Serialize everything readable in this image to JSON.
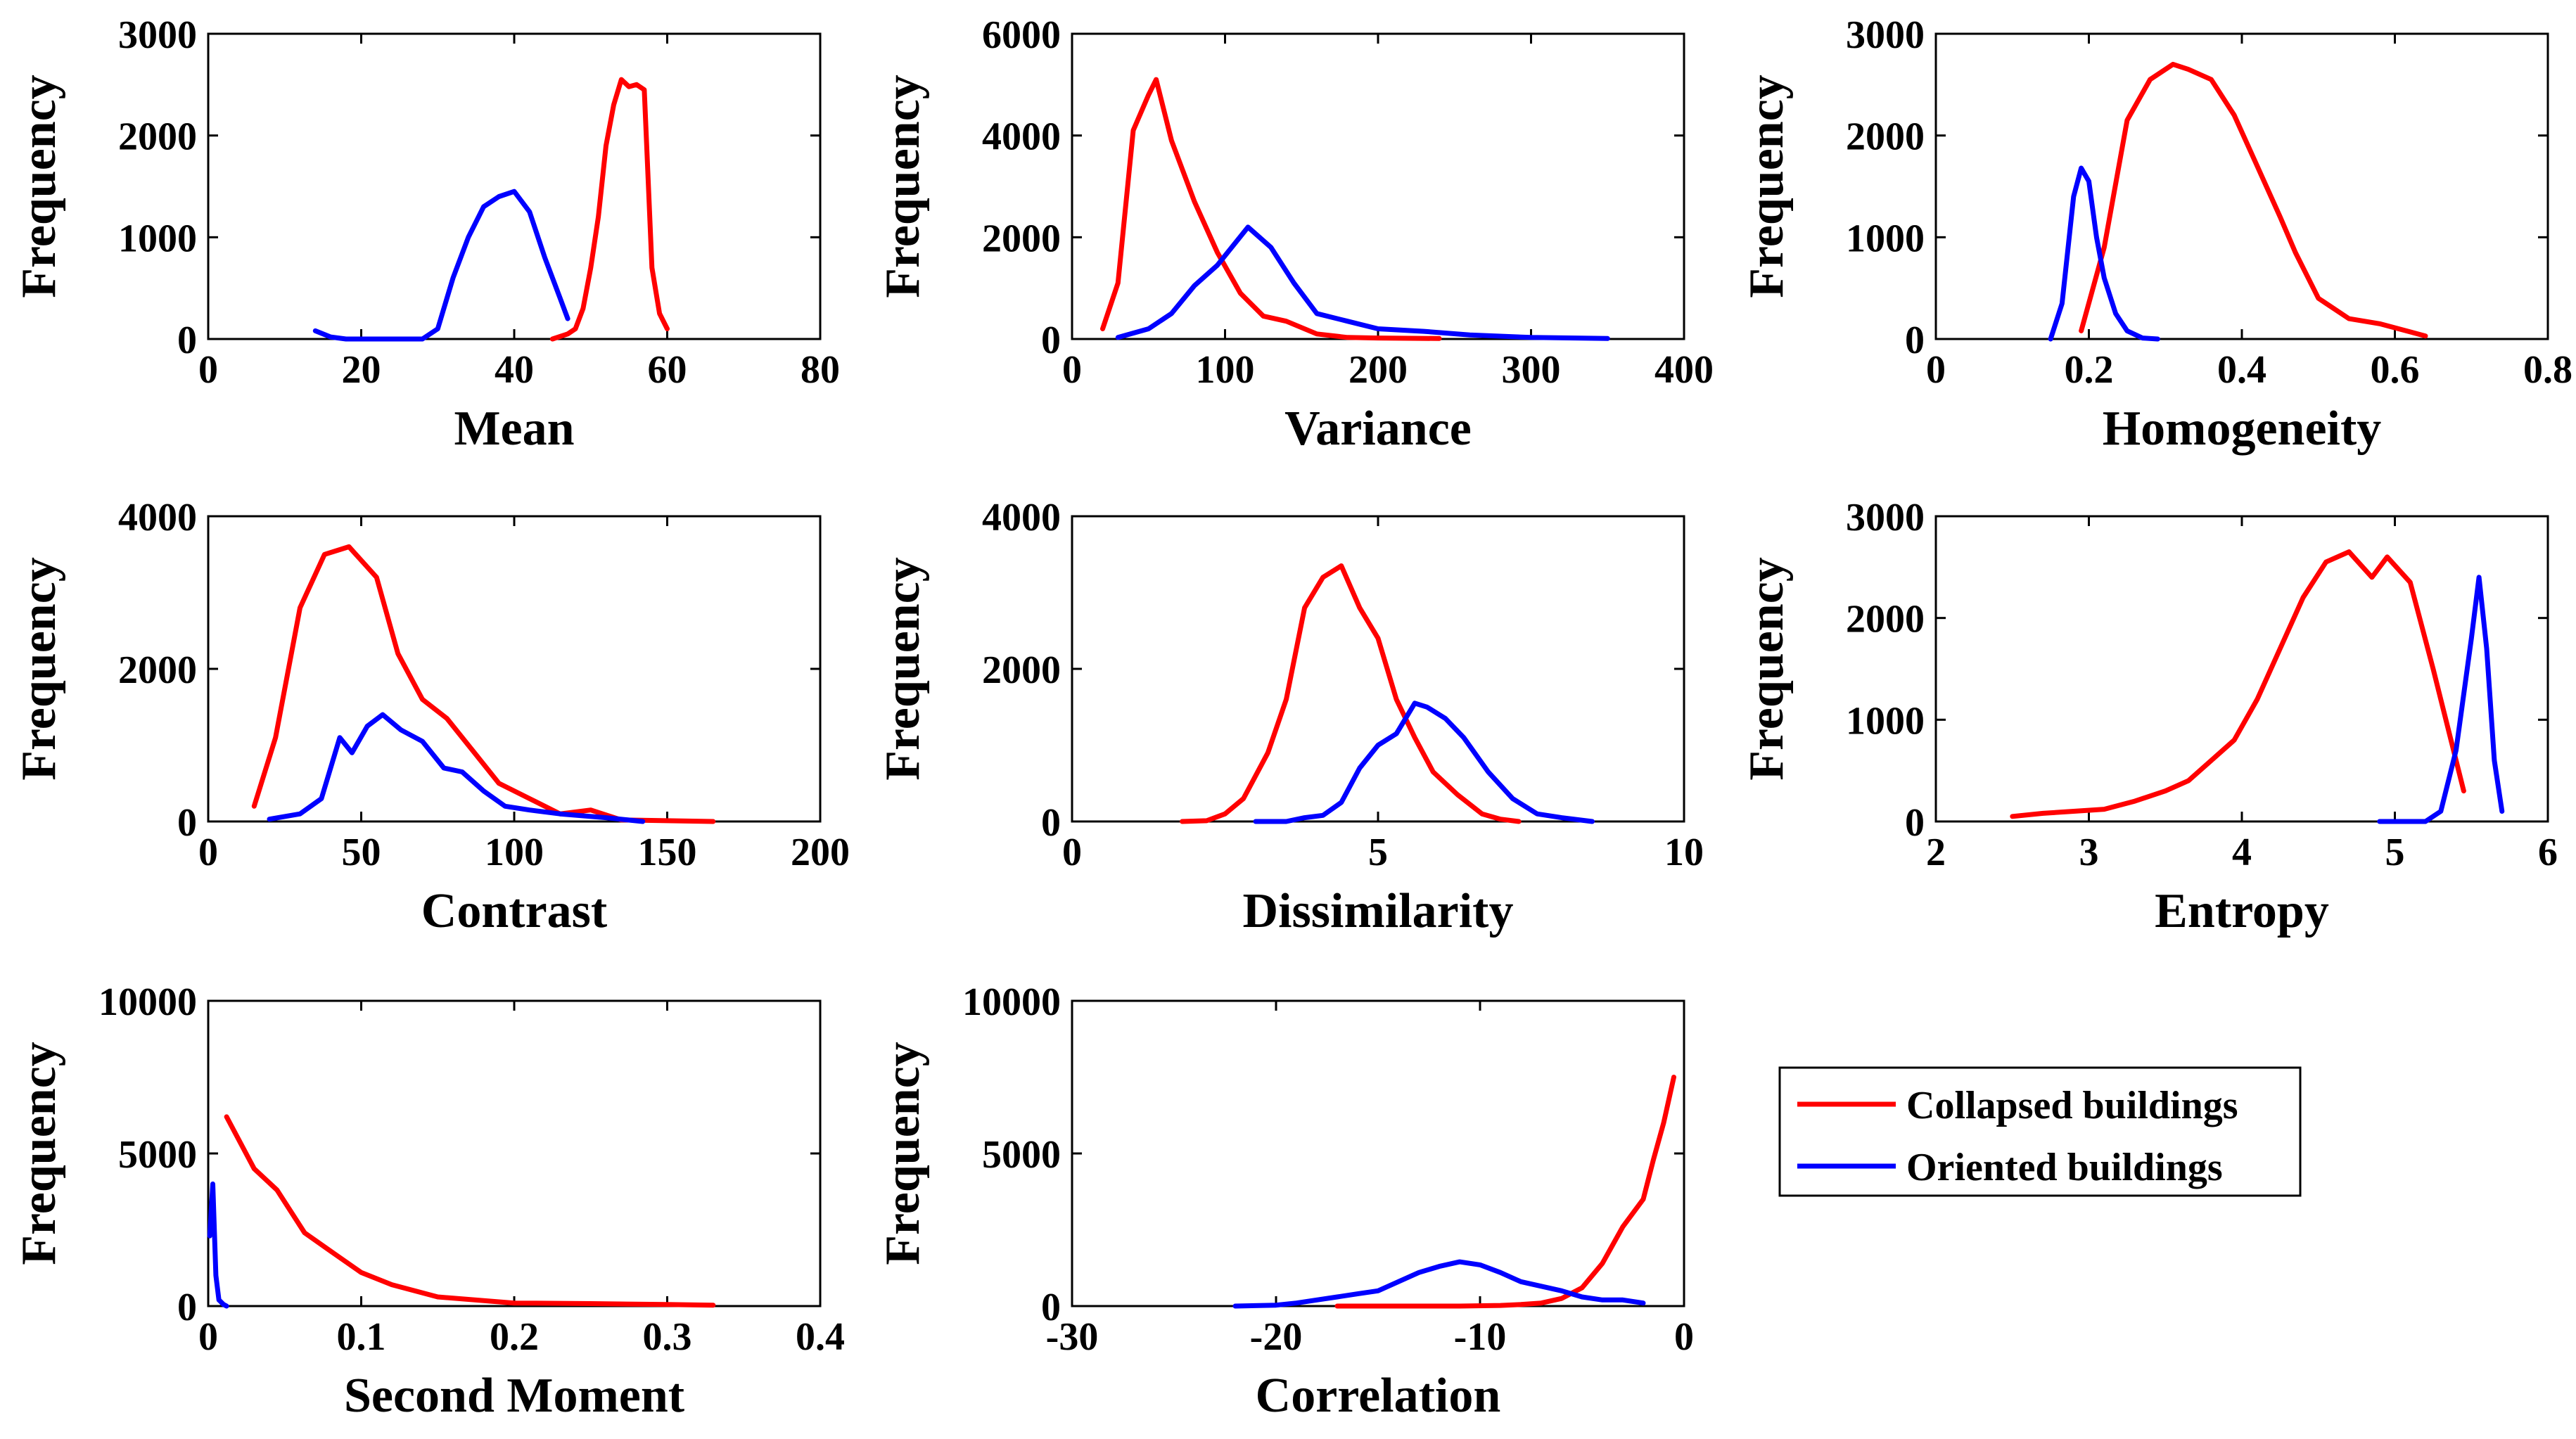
{
  "colors": {
    "collapsed": "#ff0000",
    "oriented": "#0000ff",
    "axis": "#000000"
  },
  "legend": {
    "placement": "bottom-right",
    "entries": [
      {
        "label": "Collapsed buildings",
        "color": "#ff0000"
      },
      {
        "label": "Oriented buildings",
        "color": "#0000ff"
      }
    ]
  },
  "chart_data": [
    {
      "type": "line",
      "xlabel": "Mean",
      "ylabel": "Frequency",
      "xlim": [
        0,
        80
      ],
      "ylim": [
        0,
        3000
      ],
      "xticks": [
        "0",
        "20",
        "40",
        "60",
        "80"
      ],
      "yticks": [
        "0",
        "1000",
        "2000",
        "3000"
      ],
      "series": [
        {
          "name": "Collapsed buildings",
          "color": "#ff0000",
          "x": [
            45,
            47,
            48,
            49,
            50,
            51,
            52,
            53,
            54,
            55,
            56,
            57,
            58,
            59,
            60
          ],
          "y": [
            0,
            50,
            100,
            300,
            700,
            1200,
            1900,
            2300,
            2550,
            2480,
            2500,
            2450,
            700,
            250,
            100
          ]
        },
        {
          "name": "Oriented buildings",
          "color": "#0000ff",
          "x": [
            14,
            16,
            18,
            20,
            22,
            24,
            26,
            28,
            30,
            32,
            34,
            36,
            38,
            40,
            42,
            44,
            46,
            47
          ],
          "y": [
            80,
            20,
            0,
            0,
            0,
            0,
            0,
            0,
            100,
            600,
            1000,
            1300,
            1400,
            1450,
            1250,
            800,
            400,
            200
          ]
        }
      ]
    },
    {
      "type": "line",
      "xlabel": "Variance",
      "ylabel": "Frequency",
      "xlim": [
        0,
        400
      ],
      "ylim": [
        0,
        6000
      ],
      "xticks": [
        "0",
        "100",
        "200",
        "300",
        "400"
      ],
      "yticks": [
        "0",
        "2000",
        "4000",
        "6000"
      ],
      "series": [
        {
          "name": "Collapsed buildings",
          "color": "#ff0000",
          "x": [
            20,
            30,
            40,
            50,
            55,
            65,
            80,
            95,
            110,
            125,
            140,
            160,
            180,
            200,
            240
          ],
          "y": [
            200,
            1100,
            4100,
            4800,
            5100,
            3900,
            2700,
            1700,
            900,
            450,
            350,
            100,
            30,
            20,
            10
          ]
        },
        {
          "name": "Oriented buildings",
          "color": "#0000ff",
          "x": [
            30,
            50,
            65,
            80,
            95,
            115,
            130,
            145,
            160,
            180,
            200,
            230,
            260,
            300,
            350
          ],
          "y": [
            30,
            200,
            500,
            1050,
            1450,
            2200,
            1800,
            1100,
            500,
            350,
            200,
            150,
            80,
            30,
            10
          ]
        }
      ]
    },
    {
      "type": "line",
      "xlabel": "Homogeneity",
      "ylabel": "Frequency",
      "xlim": [
        0,
        0.8
      ],
      "ylim": [
        0,
        3000
      ],
      "xticks": [
        "0",
        "0.2",
        "0.4",
        "0.6",
        "0.8"
      ],
      "yticks": [
        "0",
        "1000",
        "2000",
        "3000"
      ],
      "series": [
        {
          "name": "Collapsed buildings",
          "color": "#ff0000",
          "x": [
            0.19,
            0.22,
            0.25,
            0.28,
            0.31,
            0.33,
            0.36,
            0.39,
            0.42,
            0.45,
            0.47,
            0.5,
            0.54,
            0.58,
            0.64
          ],
          "y": [
            80,
            900,
            2150,
            2550,
            2700,
            2650,
            2550,
            2200,
            1700,
            1200,
            850,
            400,
            200,
            150,
            30
          ]
        },
        {
          "name": "Oriented buildings",
          "color": "#0000ff",
          "x": [
            0.15,
            0.165,
            0.18,
            0.19,
            0.2,
            0.21,
            0.22,
            0.235,
            0.25,
            0.27,
            0.29
          ],
          "y": [
            0,
            350,
            1400,
            1680,
            1550,
            1000,
            600,
            250,
            80,
            10,
            0
          ]
        }
      ]
    },
    {
      "type": "line",
      "xlabel": "Contrast",
      "ylabel": "Frequency",
      "xlim": [
        0,
        200
      ],
      "ylim": [
        0,
        4000
      ],
      "xticks": [
        "0",
        "50",
        "100",
        "150",
        "200"
      ],
      "yticks": [
        "0",
        "2000",
        "4000"
      ],
      "series": [
        {
          "name": "Collapsed buildings",
          "color": "#ff0000",
          "x": [
            15,
            22,
            30,
            38,
            46,
            55,
            62,
            70,
            78,
            87,
            95,
            105,
            115,
            125,
            135,
            150,
            165
          ],
          "y": [
            200,
            1100,
            2800,
            3500,
            3600,
            3200,
            2200,
            1600,
            1350,
            900,
            500,
            300,
            100,
            150,
            20,
            10,
            0
          ]
        },
        {
          "name": "Oriented buildings",
          "color": "#0000ff",
          "x": [
            20,
            30,
            37,
            43,
            47,
            52,
            57,
            63,
            70,
            77,
            83,
            90,
            97,
            105,
            115,
            130,
            142
          ],
          "y": [
            30,
            100,
            300,
            1100,
            900,
            1250,
            1400,
            1200,
            1050,
            700,
            650,
            400,
            200,
            150,
            100,
            50,
            0
          ]
        }
      ]
    },
    {
      "type": "line",
      "xlabel": "Dissimilarity",
      "ylabel": "Frequency",
      "xlim": [
        0,
        10
      ],
      "ylim": [
        0,
        4000
      ],
      "xticks": [
        "0",
        "5",
        "10"
      ],
      "yticks": [
        "0",
        "2000",
        "4000"
      ],
      "series": [
        {
          "name": "Collapsed buildings",
          "color": "#ff0000",
          "x": [
            1.8,
            2.2,
            2.5,
            2.8,
            3.2,
            3.5,
            3.8,
            4.1,
            4.4,
            4.7,
            5.0,
            5.3,
            5.6,
            5.9,
            6.3,
            6.7,
            7.0,
            7.3
          ],
          "y": [
            0,
            10,
            100,
            300,
            900,
            1600,
            2800,
            3200,
            3350,
            2800,
            2400,
            1600,
            1100,
            650,
            350,
            100,
            30,
            0
          ]
        },
        {
          "name": "Oriented buildings",
          "color": "#0000ff",
          "x": [
            3.0,
            3.5,
            3.8,
            4.1,
            4.4,
            4.7,
            5.0,
            5.3,
            5.6,
            5.8,
            6.1,
            6.4,
            6.8,
            7.2,
            7.6,
            8.0,
            8.5
          ],
          "y": [
            0,
            0,
            50,
            80,
            250,
            700,
            1000,
            1150,
            1550,
            1500,
            1350,
            1100,
            650,
            300,
            100,
            50,
            0
          ]
        }
      ]
    },
    {
      "type": "line",
      "xlabel": "Entropy",
      "ylabel": "Frequency",
      "xlim": [
        2,
        6
      ],
      "ylim": [
        0,
        3000
      ],
      "xticks": [
        "2",
        "3",
        "4",
        "5",
        "6"
      ],
      "yticks": [
        "0",
        "1000",
        "2000",
        "3000"
      ],
      "series": [
        {
          "name": "Collapsed buildings",
          "color": "#ff0000",
          "x": [
            2.5,
            2.7,
            2.9,
            3.1,
            3.3,
            3.5,
            3.65,
            3.8,
            3.95,
            4.1,
            4.25,
            4.4,
            4.55,
            4.7,
            4.85,
            4.95,
            5.1,
            5.25,
            5.45
          ],
          "y": [
            50,
            80,
            100,
            120,
            200,
            300,
            400,
            600,
            800,
            1200,
            1700,
            2200,
            2550,
            2650,
            2400,
            2600,
            2350,
            1500,
            300
          ]
        },
        {
          "name": "Oriented buildings",
          "color": "#0000ff",
          "x": [
            4.9,
            5.0,
            5.2,
            5.3,
            5.4,
            5.5,
            5.55,
            5.6,
            5.65,
            5.7
          ],
          "y": [
            0,
            0,
            0,
            100,
            700,
            1800,
            2400,
            1700,
            600,
            100
          ]
        }
      ]
    },
    {
      "type": "line",
      "xlabel": "Second Moment",
      "ylabel": "Frequency",
      "xlim": [
        0,
        0.4
      ],
      "ylim": [
        0,
        10000
      ],
      "xticks": [
        "0",
        "0.1",
        "0.2",
        "0.3",
        "0.4"
      ],
      "yticks": [
        "0",
        "5000",
        "10000"
      ],
      "series": [
        {
          "name": "Collapsed buildings",
          "color": "#ff0000",
          "x": [
            0.012,
            0.03,
            0.045,
            0.063,
            0.08,
            0.1,
            0.12,
            0.15,
            0.2,
            0.25,
            0.3,
            0.33
          ],
          "y": [
            6200,
            4500,
            3800,
            2400,
            1800,
            1100,
            700,
            300,
            100,
            80,
            50,
            30
          ]
        },
        {
          "name": "Oriented buildings",
          "color": "#0000ff",
          "x": [
            0.001,
            0.003,
            0.005,
            0.007,
            0.01,
            0.012
          ],
          "y": [
            2300,
            4000,
            1000,
            200,
            50,
            0
          ]
        }
      ]
    },
    {
      "type": "line",
      "xlabel": "Correlation",
      "ylabel": "Frequency",
      "xlim": [
        -30,
        0
      ],
      "ylim": [
        0,
        10000
      ],
      "xticks": [
        "-30",
        "-20",
        "-10",
        "0"
      ],
      "yticks": [
        "0",
        "5000",
        "10000"
      ],
      "series": [
        {
          "name": "Collapsed buildings",
          "color": "#ff0000",
          "x": [
            -17,
            -15,
            -13,
            -11,
            -9,
            -8,
            -7,
            -6,
            -5,
            -4,
            -3,
            -2,
            -1.5,
            -1,
            -0.5
          ],
          "y": [
            0,
            0,
            0,
            0,
            20,
            50,
            100,
            250,
            600,
            1400,
            2600,
            3500,
            4800,
            6000,
            7500
          ]
        },
        {
          "name": "Oriented buildings",
          "color": "#0000ff",
          "x": [
            -22,
            -20,
            -19,
            -18,
            -17,
            -16,
            -15,
            -14,
            -13,
            -12,
            -11,
            -10,
            -9,
            -8,
            -7,
            -6,
            -5,
            -4,
            -3,
            -2
          ],
          "y": [
            0,
            30,
            100,
            200,
            300,
            400,
            500,
            800,
            1100,
            1300,
            1450,
            1350,
            1100,
            800,
            650,
            500,
            300,
            200,
            200,
            100
          ]
        }
      ]
    }
  ]
}
